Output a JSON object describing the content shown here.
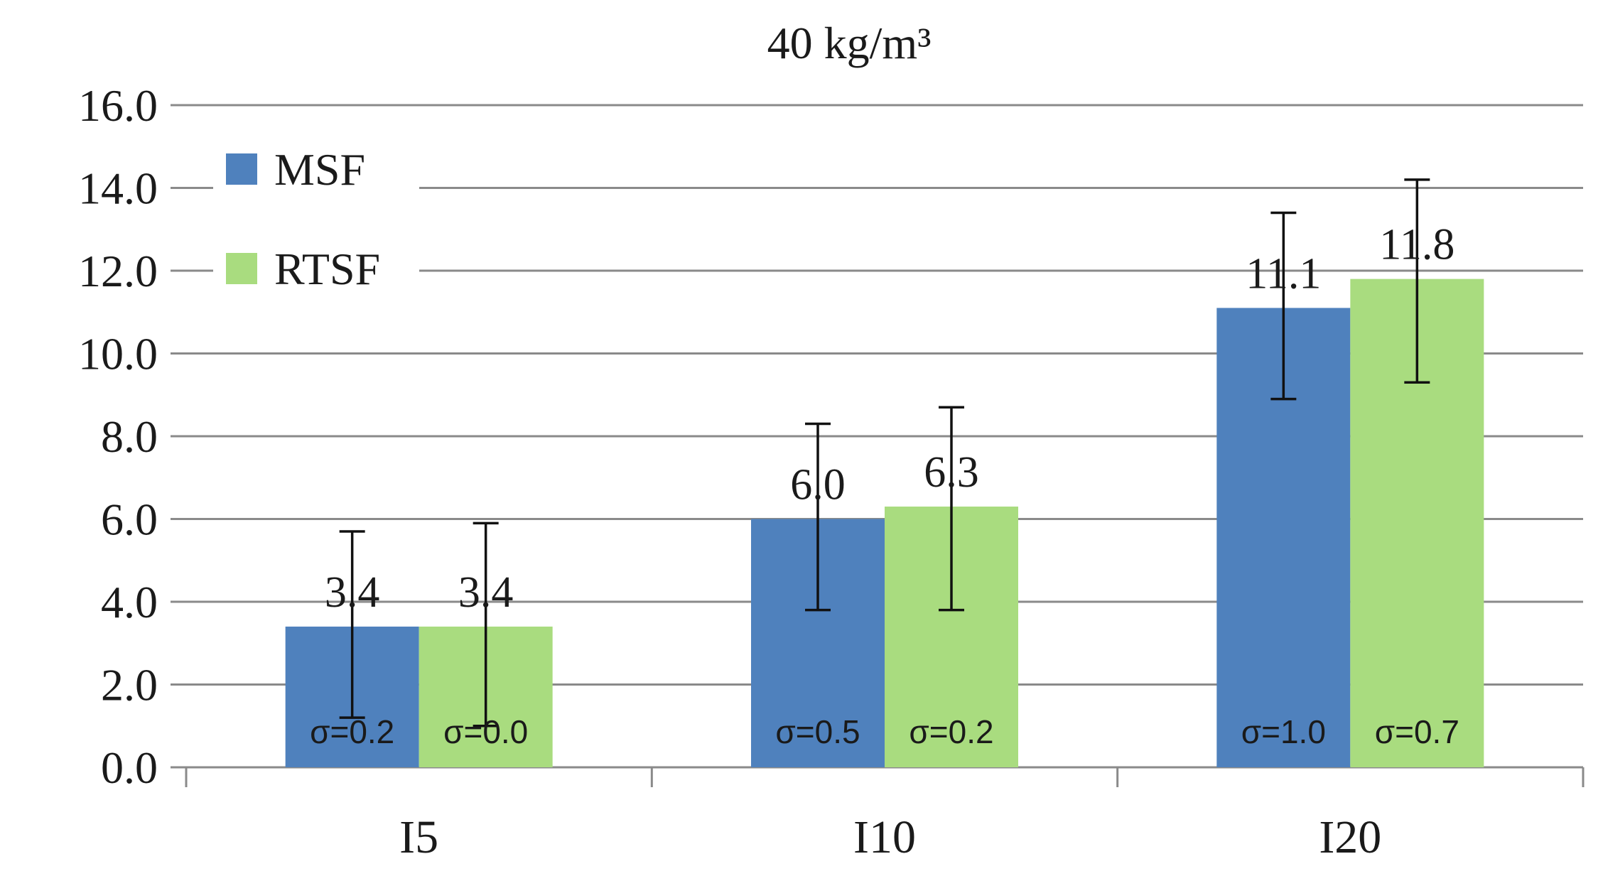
{
  "chart_data": {
    "type": "bar",
    "title": "40 kg/m³",
    "xlabel": "",
    "ylabel": "",
    "ylim": [
      0,
      16
    ],
    "y_ticks": [
      "0.0",
      "2.0",
      "4.0",
      "6.0",
      "8.0",
      "10.0",
      "12.0",
      "14.0",
      "16.0"
    ],
    "grid": true,
    "legend_position": "top-left",
    "categories": [
      "I5",
      "I10",
      "I20"
    ],
    "series": [
      {
        "name": "MSF",
        "color": "#4f81bd",
        "values": [
          3.4,
          6.0,
          11.1
        ],
        "value_labels": [
          "3.4",
          "6.0",
          "11.1"
        ],
        "error_low": [
          1.2,
          3.8,
          8.9
        ],
        "error_high": [
          5.7,
          8.3,
          13.4
        ],
        "sigma_labels": [
          "σ=0.2",
          "σ=0.5",
          "σ=1.0"
        ]
      },
      {
        "name": "RTSF",
        "color": "#a9dc7f",
        "values": [
          3.4,
          6.3,
          11.8
        ],
        "value_labels": [
          "3.4",
          "6.3",
          "11.8"
        ],
        "error_low": [
          1.0,
          3.8,
          9.3
        ],
        "error_high": [
          5.9,
          8.7,
          14.2
        ],
        "sigma_labels": [
          "σ=0.0",
          "σ=0.2",
          "σ=0.7"
        ]
      }
    ]
  }
}
